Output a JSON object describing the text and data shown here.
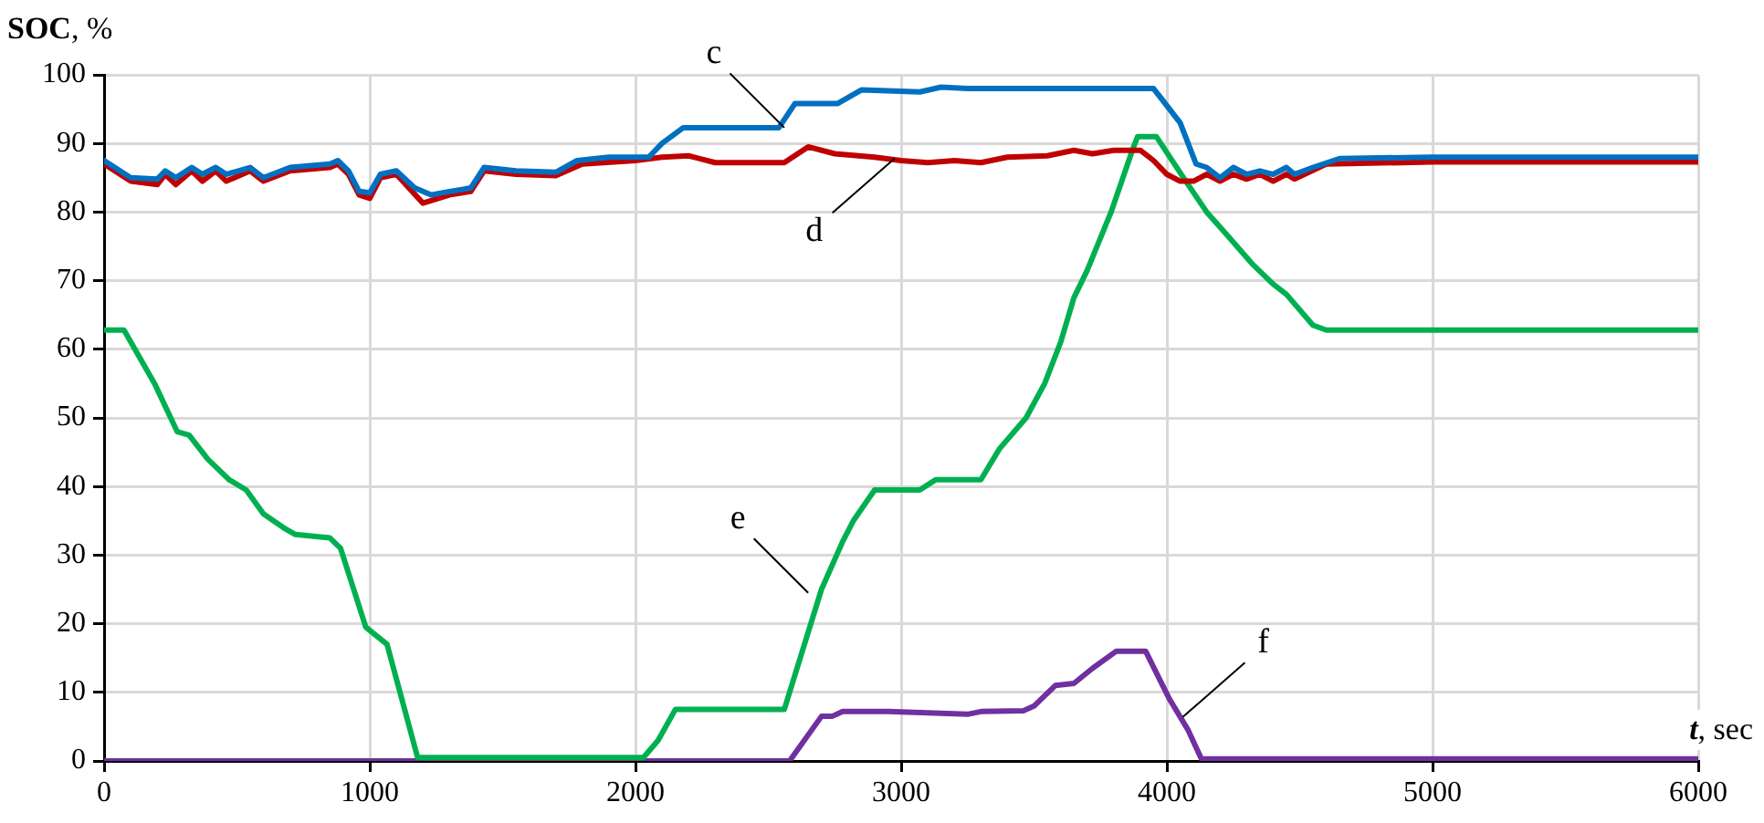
{
  "chart_data": {
    "type": "line",
    "xlabel": "t, sec",
    "ylabel": "SOC, %",
    "xlim": [
      0,
      6000
    ],
    "xticks": [
      0,
      1000,
      2000,
      3000,
      4000,
      5000,
      6000
    ],
    "ylim": [
      0,
      100
    ],
    "yticks": [
      0,
      10,
      20,
      30,
      40,
      50,
      60,
      70,
      80,
      90,
      100
    ],
    "grid": true,
    "legend": false,
    "marker": "none",
    "line_style": "solid",
    "series": [
      {
        "color": "#0070c0",
        "x": [
          0,
          100,
          200,
          230,
          270,
          330,
          370,
          420,
          460,
          550,
          600,
          700,
          850,
          880,
          920,
          960,
          1000,
          1040,
          1100,
          1170,
          1230,
          1300,
          1380,
          1430,
          1550,
          1700,
          1780,
          1900,
          2050,
          2100,
          2180,
          2540,
          2600,
          2760,
          2850,
          3070,
          3150,
          3250,
          3950,
          4050,
          4110,
          4150,
          4200,
          4250,
          4300,
          4350,
          4400,
          4450,
          4480,
          4550,
          4650,
          5000,
          6000
        ],
        "values": [
          87.5,
          85,
          84.8,
          86,
          85,
          86.5,
          85.5,
          86.5,
          85.5,
          86.5,
          85,
          86.5,
          87,
          87.5,
          86,
          83,
          82.8,
          85.5,
          86,
          83.5,
          82.5,
          83,
          83.5,
          86.5,
          86,
          85.8,
          87.5,
          88,
          88,
          90,
          92.3,
          92.3,
          95.8,
          95.8,
          97.8,
          97.5,
          98.2,
          98,
          98,
          93,
          87,
          86.5,
          85,
          86.5,
          85.5,
          86,
          85.5,
          86.5,
          85.5,
          86.5,
          87.8,
          88,
          88
        ]
      },
      {
        "color": "#c00000",
        "x": [
          0,
          100,
          200,
          230,
          270,
          330,
          370,
          420,
          460,
          550,
          600,
          700,
          850,
          880,
          920,
          960,
          1000,
          1040,
          1100,
          1200,
          1300,
          1380,
          1430,
          1550,
          1700,
          1800,
          2000,
          2100,
          2200,
          2300,
          2560,
          2650,
          2750,
          2900,
          3000,
          3100,
          3200,
          3300,
          3400,
          3550,
          3650,
          3720,
          3800,
          3900,
          3950,
          4000,
          4050,
          4100,
          4150,
          4200,
          4250,
          4300,
          4350,
          4400,
          4450,
          4480,
          4600,
          5000,
          6000
        ],
        "values": [
          87,
          84.5,
          84,
          85.5,
          84,
          86,
          84.5,
          86,
          84.5,
          86,
          84.5,
          86,
          86.5,
          87,
          85.5,
          82.5,
          82,
          85,
          85.5,
          81.3,
          82.5,
          83,
          86,
          85.5,
          85.3,
          87,
          87.5,
          88,
          88.2,
          87.2,
          87.2,
          89.5,
          88.5,
          88,
          87.5,
          87.2,
          87.5,
          87.2,
          88,
          88.2,
          89,
          88.5,
          89,
          89,
          87.5,
          85.5,
          84.5,
          84.5,
          85.5,
          84.5,
          85.5,
          84.8,
          85.5,
          84.5,
          85.5,
          84.8,
          87,
          87.3,
          87.3
        ]
      },
      {
        "color": "#00b050",
        "x": [
          0,
          75,
          190,
          275,
          320,
          390,
          470,
          535,
          600,
          675,
          720,
          850,
          890,
          985,
          1065,
          1180,
          2030,
          2085,
          2150,
          2560,
          2620,
          2700,
          2780,
          2820,
          2900,
          3070,
          3130,
          3300,
          3370,
          3470,
          3540,
          3600,
          3650,
          3700,
          3790,
          3870,
          3890,
          3960,
          4080,
          4150,
          4230,
          4320,
          4400,
          4450,
          4550,
          4600,
          6000
        ],
        "values": [
          62.8,
          62.8,
          55,
          48,
          47.5,
          44,
          41,
          39.5,
          36,
          34,
          33,
          32.5,
          31,
          19.5,
          17,
          0.5,
          0.5,
          3,
          7.5,
          7.5,
          15,
          25,
          32,
          35,
          39.5,
          39.5,
          41,
          41,
          45.5,
          50,
          55,
          61,
          67.5,
          71.5,
          80,
          89,
          91,
          91,
          84,
          80,
          76.5,
          72.5,
          69.5,
          68,
          63.5,
          62.8,
          62.8
        ]
      },
      {
        "color": "#7030a0",
        "x": [
          0,
          2580,
          2700,
          2740,
          2780,
          2950,
          3100,
          3250,
          3300,
          3460,
          3500,
          3580,
          3650,
          3720,
          3810,
          3920,
          4010,
          4080,
          4130,
          6000
        ],
        "values": [
          0,
          0,
          6.5,
          6.5,
          7.2,
          7.2,
          7,
          6.8,
          7.2,
          7.3,
          8,
          11,
          11.3,
          13.5,
          16,
          16,
          9,
          4.5,
          0.3,
          0.3
        ]
      }
    ],
    "annotations": [
      {
        "text": "c",
        "x": 2560,
        "y": 92.3
      },
      {
        "text": "d",
        "x": 2975,
        "y": 87.8
      },
      {
        "text": "e",
        "x": 2650,
        "y": 24.5
      },
      {
        "text": "f",
        "x": 4060,
        "y": 6.4
      }
    ]
  }
}
